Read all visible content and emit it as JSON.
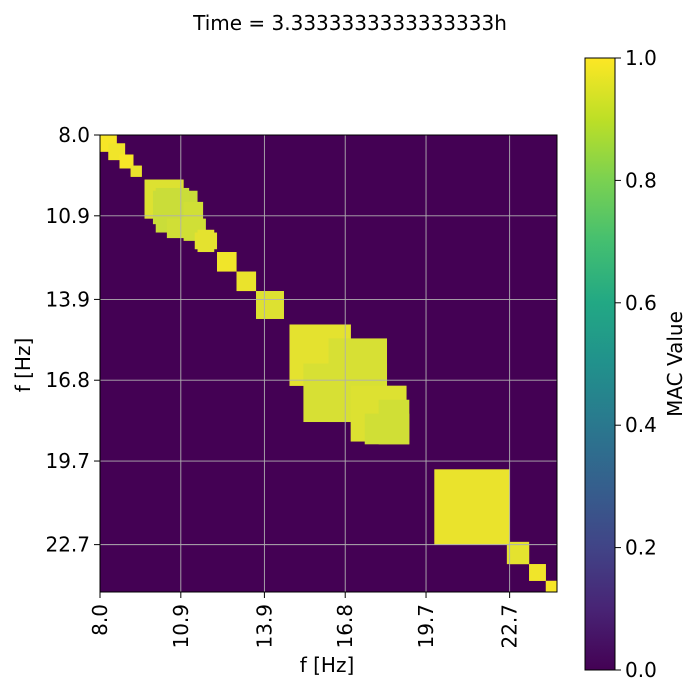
{
  "chart_data": {
    "type": "heatmap",
    "title": "Time = 3.3333333333333333h",
    "xlabel": "f [Hz]",
    "ylabel": "f [Hz]",
    "xlim": [
      8.0,
      24.4
    ],
    "ylim": [
      8.0,
      24.4
    ],
    "x_ticks": [
      "8.0",
      "10.9",
      "13.9",
      "16.8",
      "19.7",
      "22.7"
    ],
    "y_ticks": [
      "8.0",
      "10.9",
      "13.9",
      "16.8",
      "19.7",
      "22.7"
    ],
    "tick_values": [
      8.0,
      10.9,
      13.9,
      16.8,
      19.7,
      22.7
    ],
    "grid": true,
    "colormap": "viridis",
    "background_value": 0.0,
    "colorbar": {
      "label": "MAC Value",
      "range": [
        0.0,
        1.0
      ],
      "ticks": [
        "0.0",
        "0.2",
        "0.4",
        "0.6",
        "0.8",
        "1.0"
      ]
    },
    "high_value_regions": [
      {
        "f1": [
          8.0,
          8.6
        ],
        "f2": [
          8.0,
          8.6
        ],
        "value": 0.99
      },
      {
        "f1": [
          8.3,
          8.9
        ],
        "f2": [
          8.3,
          8.9
        ],
        "value": 0.98
      },
      {
        "f1": [
          8.7,
          9.2
        ],
        "f2": [
          8.7,
          9.2
        ],
        "value": 0.99
      },
      {
        "f1": [
          9.1,
          9.5
        ],
        "f2": [
          9.1,
          9.5
        ],
        "value": 0.97
      },
      {
        "f1": [
          9.6,
          11.0
        ],
        "f2": [
          9.6,
          11.0
        ],
        "value": 0.95
      },
      {
        "f1": [
          9.9,
          11.5
        ],
        "f2": [
          10.0,
          11.2
        ],
        "value": 0.92
      },
      {
        "f1": [
          10.4,
          11.8
        ],
        "f2": [
          11.0,
          11.7
        ],
        "value": 0.93
      },
      {
        "f1": [
          11.4,
          12.2
        ],
        "f2": [
          11.5,
          12.1
        ],
        "value": 0.96
      },
      {
        "f1": [
          12.2,
          12.9
        ],
        "f2": [
          12.2,
          12.9
        ],
        "value": 0.98
      },
      {
        "f1": [
          12.9,
          13.6
        ],
        "f2": [
          12.9,
          13.6
        ],
        "value": 0.97
      },
      {
        "f1": [
          13.6,
          14.6
        ],
        "f2": [
          13.6,
          14.6
        ],
        "value": 0.95
      },
      {
        "f1": [
          14.8,
          17.0
        ],
        "f2": [
          14.8,
          17.0
        ],
        "value": 0.96
      },
      {
        "f1": [
          15.3,
          18.3
        ],
        "f2": [
          16.2,
          18.3
        ],
        "value": 0.94
      },
      {
        "f1": [
          17.0,
          19.0
        ],
        "f2": [
          17.0,
          19.0
        ],
        "value": 0.95
      },
      {
        "f1": [
          17.5,
          19.1
        ],
        "f2": [
          18.0,
          19.1
        ],
        "value": 0.93
      },
      {
        "f1": [
          20.0,
          22.7
        ],
        "f2": [
          20.0,
          22.7
        ],
        "value": 0.97
      },
      {
        "f1": [
          22.7,
          23.4
        ],
        "f2": [
          22.6,
          23.4
        ],
        "value": 0.96
      },
      {
        "f1": [
          23.4,
          24.0
        ],
        "f2": [
          23.4,
          24.0
        ],
        "value": 0.98
      },
      {
        "f1": [
          24.0,
          24.4
        ],
        "f2": [
          24.0,
          24.4
        ],
        "value": 0.99
      }
    ]
  }
}
